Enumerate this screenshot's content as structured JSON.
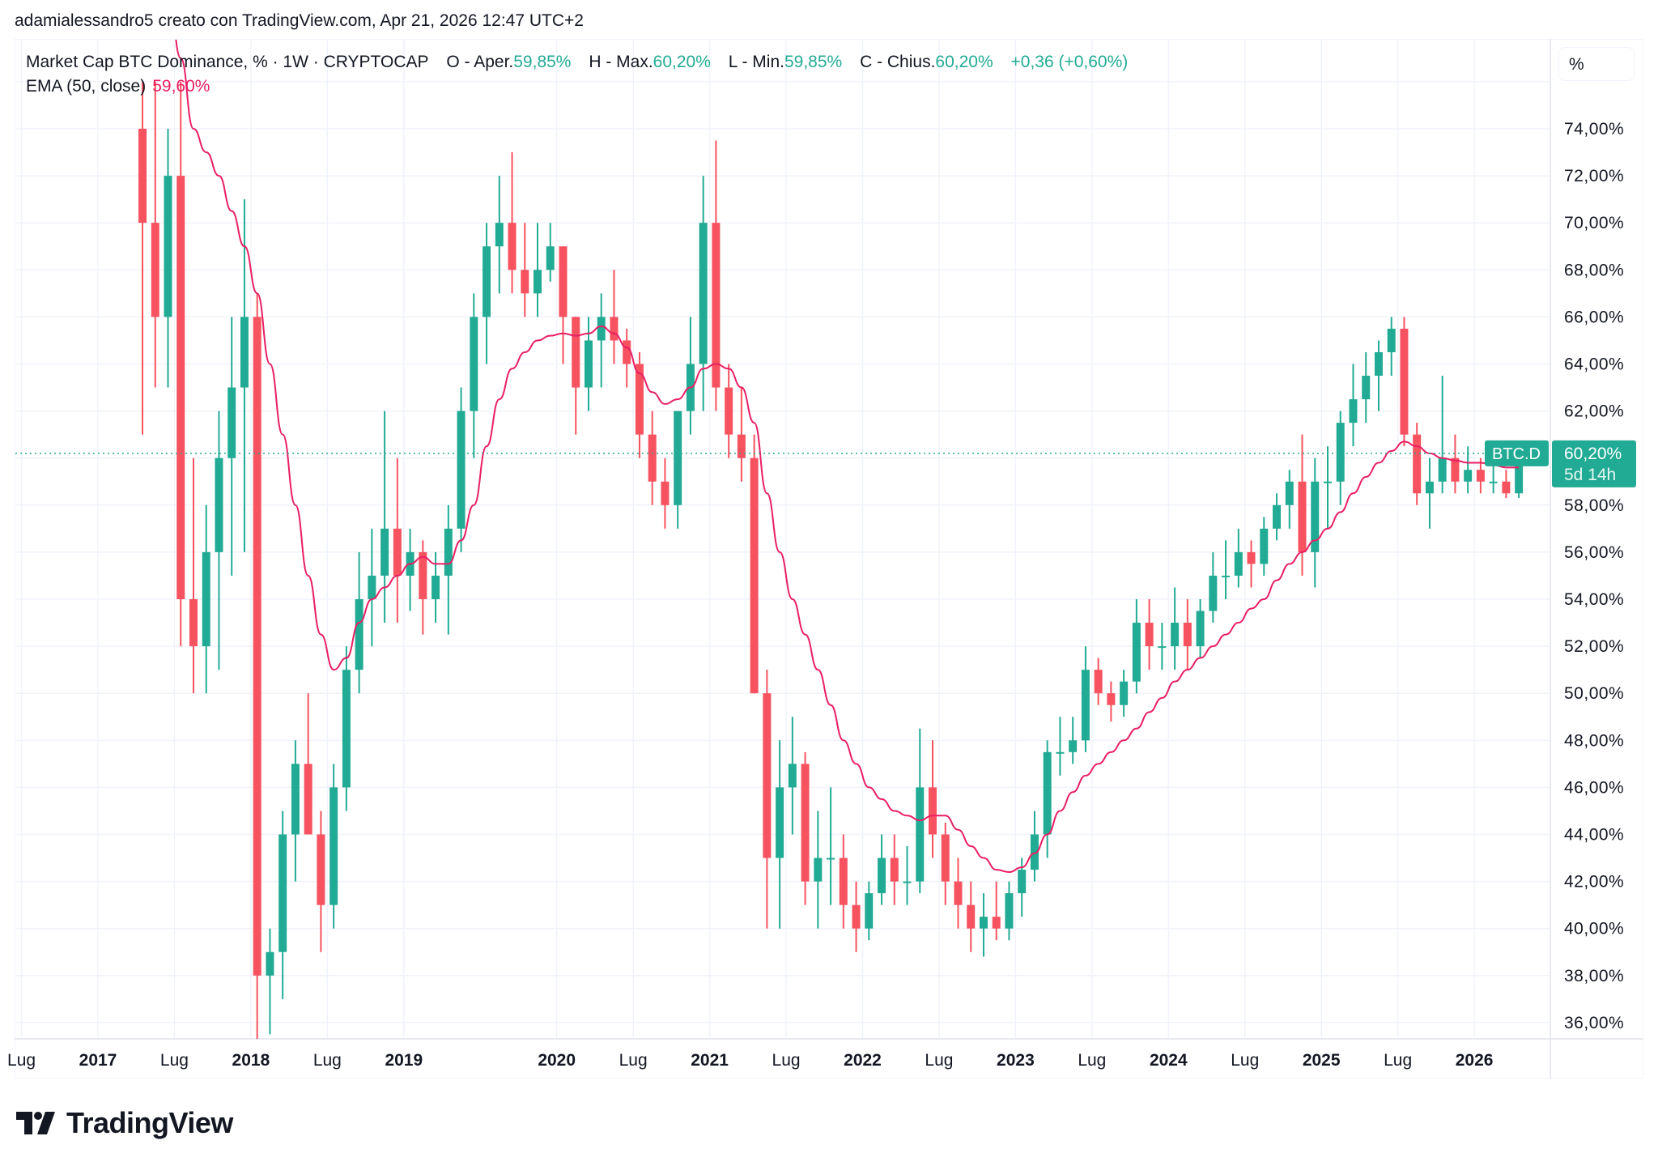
{
  "attribution": "adamialessandro5 creato con TradingView.com, Apr 21, 2026 12:47 UTC+2",
  "legend": {
    "symbol": "Market Cap BTC Dominance, % · 1W · CRYPTOCAP",
    "open_label": "O - Aper.",
    "open": "59,85%",
    "high_label": "H - Max.",
    "high": "60,20%",
    "low_label": "L - Min.",
    "low": "59,85%",
    "close_label": "C - Chius.",
    "close": "60,20%",
    "change": "+0,36 (+0,60%)",
    "ema_label": "EMA (50, close)",
    "ema_value": "59,60%"
  },
  "price_axis": {
    "unit_button": "%",
    "labels": [
      "74,00%",
      "72,00%",
      "70,00%",
      "68,00%",
      "66,00%",
      "64,00%",
      "62,00%",
      "58,00%",
      "56,00%",
      "54,00%",
      "52,00%",
      "50,00%",
      "48,00%",
      "46,00%",
      "44,00%",
      "42,00%",
      "40,00%",
      "38,00%",
      "36,00%"
    ],
    "last_price": "60,20%",
    "countdown": "5d 14h",
    "symbol_tag": "BTC.D"
  },
  "time_axis": {
    "labels": [
      {
        "text": "Lug",
        "date": "2016-07",
        "year": false
      },
      {
        "text": "2017",
        "date": "2017-01",
        "year": true
      },
      {
        "text": "Lug",
        "date": "2017-07",
        "year": false
      },
      {
        "text": "2018",
        "date": "2018-01",
        "year": true
      },
      {
        "text": "Lug",
        "date": "2018-07",
        "year": false
      },
      {
        "text": "2019",
        "date": "2019-01",
        "year": true
      },
      {
        "text": "2020",
        "date": "2020-01",
        "year": true
      },
      {
        "text": "Lug",
        "date": "2020-07",
        "year": false
      },
      {
        "text": "2021",
        "date": "2021-01",
        "year": true
      },
      {
        "text": "Lug",
        "date": "2021-07",
        "year": false
      },
      {
        "text": "2022",
        "date": "2022-01",
        "year": true
      },
      {
        "text": "Lug",
        "date": "2022-07",
        "year": false
      },
      {
        "text": "2023",
        "date": "2023-01",
        "year": true
      },
      {
        "text": "Lug",
        "date": "2023-07",
        "year": false
      },
      {
        "text": "2024",
        "date": "2024-01",
        "year": true
      },
      {
        "text": "Lug",
        "date": "2024-07",
        "year": false
      },
      {
        "text": "2025",
        "date": "2025-01",
        "year": true
      },
      {
        "text": "Lug",
        "date": "2025-07",
        "year": false
      },
      {
        "text": "2026",
        "date": "2026-01",
        "year": true
      }
    ]
  },
  "logo": {
    "text": "TradingView"
  },
  "colors": {
    "up": "#22ab94",
    "down": "#f7525f",
    "ema": "#e91e63",
    "grid": "#f0f3fa",
    "price_line": "#22ab94"
  },
  "chart_data": {
    "type": "candlestick",
    "granularity_note": "monthly approximation of weekly candles",
    "ylim": [
      35,
      75
    ],
    "xlim": [
      "2016-06",
      "2026-12"
    ],
    "last_price": 60.2,
    "start": "2017-04",
    "ohlc": [
      [
        74,
        76,
        61,
        70
      ],
      [
        70,
        76,
        63,
        66
      ],
      [
        66,
        74,
        63,
        72
      ],
      [
        72,
        76,
        52,
        54
      ],
      [
        54,
        60,
        50,
        52
      ],
      [
        52,
        58,
        50,
        56
      ],
      [
        56,
        62,
        51,
        60
      ],
      [
        60,
        66,
        55,
        63
      ],
      [
        63,
        71,
        56,
        66
      ],
      [
        66,
        67,
        35,
        38
      ],
      [
        38,
        40,
        35.5,
        39
      ],
      [
        39,
        45,
        37,
        44
      ],
      [
        44,
        48,
        42,
        47
      ],
      [
        47,
        50,
        44,
        44
      ],
      [
        44,
        45,
        39,
        41
      ],
      [
        41,
        47,
        40,
        46
      ],
      [
        46,
        52,
        45,
        51
      ],
      [
        51,
        56,
        50,
        54
      ],
      [
        54,
        57,
        52,
        55
      ],
      [
        55,
        62,
        53,
        57
      ],
      [
        57,
        60,
        53,
        55
      ],
      [
        55,
        57,
        53.5,
        56
      ],
      [
        56,
        56.5,
        52.5,
        54
      ],
      [
        54,
        56,
        53,
        55
      ],
      [
        55,
        58,
        52.5,
        57
      ],
      [
        57,
        63,
        56,
        62
      ],
      [
        62,
        67,
        60,
        66
      ],
      [
        66,
        70,
        64,
        69
      ],
      [
        69,
        72,
        67,
        70
      ],
      [
        70,
        73,
        67,
        68
      ],
      [
        68,
        70,
        66,
        67
      ],
      [
        67,
        70,
        66,
        68
      ],
      [
        68,
        70,
        67.5,
        69
      ],
      [
        69,
        69,
        64,
        66
      ],
      [
        66,
        66,
        61,
        63
      ],
      [
        63,
        66,
        62,
        65
      ],
      [
        65,
        67,
        63,
        66
      ],
      [
        66,
        68,
        64,
        65
      ],
      [
        65,
        65.5,
        63,
        64
      ],
      [
        64,
        64.5,
        60,
        61
      ],
      [
        61,
        62,
        58,
        59
      ],
      [
        59,
        60,
        57,
        58
      ],
      [
        58,
        62,
        57,
        62
      ],
      [
        62,
        66,
        61,
        64
      ],
      [
        64,
        72,
        62,
        70
      ],
      [
        70,
        73.5,
        62,
        63
      ],
      [
        63,
        64,
        60,
        61
      ],
      [
        61,
        63,
        59,
        60
      ],
      [
        60,
        61,
        50,
        50
      ],
      [
        50,
        51,
        40,
        43
      ],
      [
        43,
        48,
        40,
        46
      ],
      [
        46,
        49,
        44,
        47
      ],
      [
        47,
        47.5,
        41,
        42
      ],
      [
        42,
        45,
        40,
        43
      ],
      [
        43,
        46,
        41,
        43
      ],
      [
        43,
        44,
        40,
        41
      ],
      [
        41,
        42,
        39,
        40
      ],
      [
        40,
        42,
        39.5,
        41.5
      ],
      [
        41.5,
        44,
        41,
        43
      ],
      [
        43,
        44,
        41,
        42
      ],
      [
        42,
        43.5,
        41,
        42
      ],
      [
        42,
        48.5,
        41.5,
        46
      ],
      [
        46,
        48,
        43,
        44
      ],
      [
        44,
        44.5,
        41,
        42
      ],
      [
        42,
        43,
        40,
        41
      ],
      [
        41,
        42,
        39,
        40
      ],
      [
        40,
        41.5,
        38.8,
        40.5
      ],
      [
        40.5,
        42,
        39.5,
        40
      ],
      [
        40,
        42,
        39.5,
        41.5
      ],
      [
        41.5,
        43,
        40.5,
        42.5
      ],
      [
        42.5,
        45,
        42,
        44
      ],
      [
        44,
        48,
        43,
        47.5
      ],
      [
        47.5,
        49,
        46.5,
        47.5
      ],
      [
        47.5,
        49,
        47,
        48
      ],
      [
        48,
        52,
        47.5,
        51
      ],
      [
        51,
        51.5,
        49.5,
        50
      ],
      [
        50,
        50.5,
        48.8,
        49.5
      ],
      [
        49.5,
        51,
        49,
        50.5
      ],
      [
        50.5,
        54,
        50,
        53
      ],
      [
        53,
        54,
        51,
        52
      ],
      [
        52,
        53,
        51,
        52
      ],
      [
        52,
        54.5,
        51,
        53
      ],
      [
        53,
        54,
        51,
        52
      ],
      [
        52,
        54,
        51.5,
        53.5
      ],
      [
        53.5,
        56,
        53,
        55
      ],
      [
        55,
        56.5,
        54,
        55
      ],
      [
        55,
        57,
        54.5,
        56
      ],
      [
        56,
        56.5,
        54.5,
        55.5
      ],
      [
        55.5,
        57.5,
        55,
        57
      ],
      [
        57,
        58.5,
        56.5,
        58
      ],
      [
        58,
        59.5,
        57,
        59
      ],
      [
        59,
        61,
        55,
        56
      ],
      [
        56,
        60,
        54.5,
        59
      ],
      [
        59,
        60.5,
        57,
        59
      ],
      [
        59,
        62,
        58,
        61.5
      ],
      [
        61.5,
        64,
        60.5,
        62.5
      ],
      [
        62.5,
        64.5,
        61.5,
        63.5
      ],
      [
        63.5,
        65,
        62,
        64.5
      ],
      [
        64.5,
        66,
        63.5,
        65.5
      ],
      [
        65.5,
        66,
        60.5,
        61
      ],
      [
        61,
        61.5,
        58,
        58.5
      ],
      [
        58.5,
        60,
        57,
        59
      ],
      [
        59,
        63.5,
        58.5,
        60
      ],
      [
        60,
        61,
        58.5,
        59
      ],
      [
        59,
        60.5,
        58.5,
        59.5
      ],
      [
        59.5,
        60,
        58.5,
        59
      ],
      [
        59,
        60.5,
        58.5,
        59
      ],
      [
        59,
        59.5,
        58.3,
        58.5
      ],
      [
        58.5,
        60.3,
        58.3,
        60.2
      ]
    ],
    "ema_start": "2017-06",
    "ema": [
      80,
      77,
      74,
      73,
      72,
      70.5,
      69,
      67,
      64,
      61,
      58,
      55,
      52.5,
      51,
      51.5,
      53,
      54,
      54.5,
      55,
      55.5,
      55.8,
      55.5,
      55.5,
      56.5,
      58,
      60.5,
      62.5,
      63.8,
      64.5,
      65,
      65.2,
      65.3,
      65.2,
      65.3,
      65.6,
      65.3,
      64.7,
      63.6,
      62.8,
      62.3,
      62.5,
      63,
      63.8,
      64,
      63.8,
      63,
      61.5,
      58.5,
      56,
      54,
      52.5,
      51,
      49.5,
      48,
      47,
      46,
      45.5,
      45,
      44.8,
      44.6,
      44.8,
      44.8,
      44.2,
      43.5,
      43,
      42.5,
      42.4,
      42.6,
      43.2,
      44,
      45,
      45.8,
      46.5,
      47,
      47.5,
      48,
      48.5,
      49.2,
      49.8,
      50.5,
      51,
      51.5,
      52,
      52.5,
      53,
      53.6,
      54,
      54.8,
      55.5,
      56,
      56.5,
      57,
      57.7,
      58.5,
      59.2,
      59.8,
      60.3,
      60.7,
      60.5,
      60.2,
      60,
      59.9,
      59.8,
      59.8,
      59.7,
      59.6,
      59.6
    ]
  }
}
